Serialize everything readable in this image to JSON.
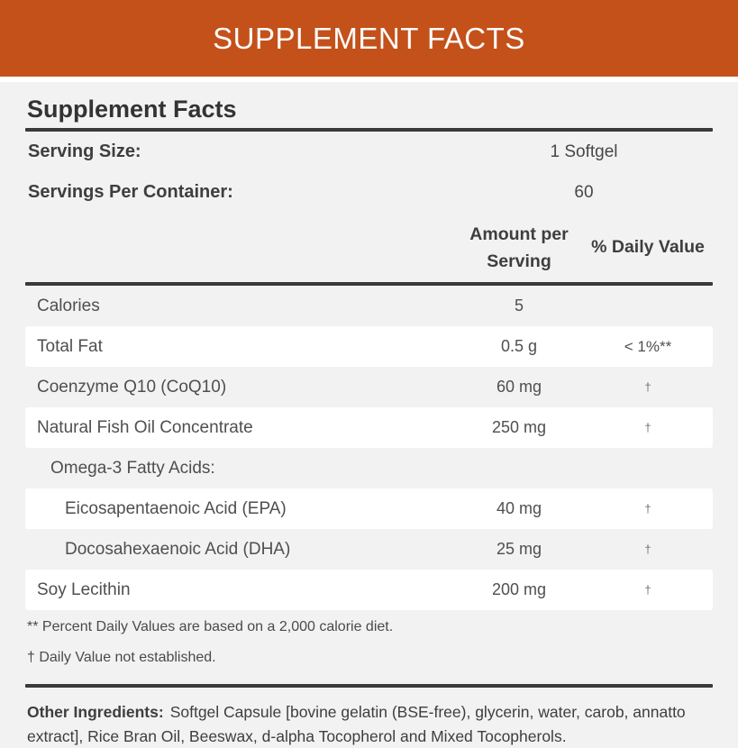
{
  "colors": {
    "accent": "#C4511A",
    "panel-bg": "#F2F2F2",
    "card-bg": "#FFFFFF",
    "rule": "#3A3A3A",
    "heading": "#333333",
    "text": "#4F4F4F",
    "muted": "#6E6E6E"
  },
  "banner": {
    "title": "SUPPLEMENT FACTS"
  },
  "panel": {
    "title": "Supplement Facts",
    "serving": [
      {
        "label": "Serving Size:",
        "value": "1 Softgel"
      },
      {
        "label": "Servings Per Container:",
        "value": "60"
      }
    ],
    "columns": {
      "amount": "Amount per Serving",
      "daily_value": "% Daily Value"
    },
    "rows": [
      {
        "name": "Calories",
        "amount": "5",
        "dv": "",
        "indent": 0
      },
      {
        "name": "Total Fat",
        "amount": "0.5 g",
        "dv": "< 1%**",
        "indent": 0
      },
      {
        "name": "Coenzyme Q10 (CoQ10)",
        "amount": "60 mg",
        "dv": "†",
        "indent": 0
      },
      {
        "name": "Natural Fish Oil Concentrate",
        "amount": "250 mg",
        "dv": "†",
        "indent": 0
      },
      {
        "name": "Omega-3 Fatty Acids:",
        "amount": "",
        "dv": "",
        "indent": 1
      },
      {
        "name": "Eicosapentaenoic Acid (EPA)",
        "amount": "40 mg",
        "dv": "†",
        "indent": 2
      },
      {
        "name": "Docosahexaenoic Acid (DHA)",
        "amount": "25 mg",
        "dv": "†",
        "indent": 2
      },
      {
        "name": "Soy Lecithin",
        "amount": "200 mg",
        "dv": "†",
        "indent": 0
      }
    ],
    "footnotes": [
      "** Percent Daily Values are based on a 2,000 calorie diet.",
      "† Daily Value not established."
    ],
    "other_ingredients_label": "Other Ingredients:",
    "other_ingredients_text": "Softgel Capsule [bovine gelatin (BSE-free), glycerin, water, carob, annatto extract], Rice Bran Oil, Beeswax, d-alpha Tocopherol and Mixed Tocopherols."
  }
}
